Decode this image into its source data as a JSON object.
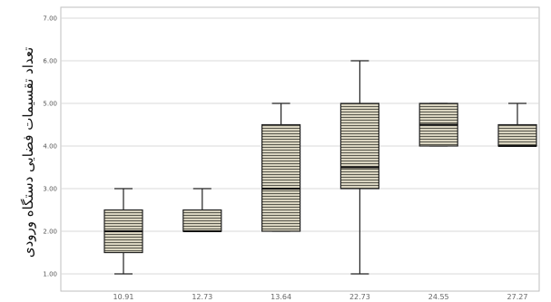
{
  "chart_data": {
    "type": "box",
    "title": "",
    "xlabel": "",
    "ylabel": "تعداد تقسیمات فضایی دستگاه ورودی",
    "categories": [
      "10.91",
      "12.73",
      "13.64",
      "22.73",
      "24.55",
      "27.27"
    ],
    "ylim": [
      1,
      7
    ],
    "y_ticks": [
      "1.00",
      "2.00",
      "3.00",
      "4.00",
      "5.00",
      "6.00",
      "7.00"
    ],
    "grid": true,
    "boxes": [
      {
        "category": "10.91",
        "min": 1,
        "q1": 1.5,
        "median": 2,
        "q3": 2.5,
        "max": 3
      },
      {
        "category": "12.73",
        "min": 2,
        "q1": 2,
        "median": 2,
        "q3": 2.5,
        "max": 3
      },
      {
        "category": "13.64",
        "min": 2,
        "q1": 2,
        "median": 3,
        "q3": 4.5,
        "max": 5
      },
      {
        "category": "22.73",
        "min": 1,
        "q1": 3,
        "median": 3.5,
        "q3": 5,
        "max": 6
      },
      {
        "category": "24.55",
        "min": 4,
        "q1": 4,
        "median": 4.5,
        "q3": 5,
        "max": 5
      },
      {
        "category": "27.27",
        "min": 4,
        "q1": 4,
        "median": 4,
        "q3": 4.5,
        "max": 5
      }
    ],
    "box_fill": "#d9d4c0",
    "box_stroke": "#222222",
    "hatch_color": "#4a4a40",
    "grid_color": "#d8d8d8"
  }
}
